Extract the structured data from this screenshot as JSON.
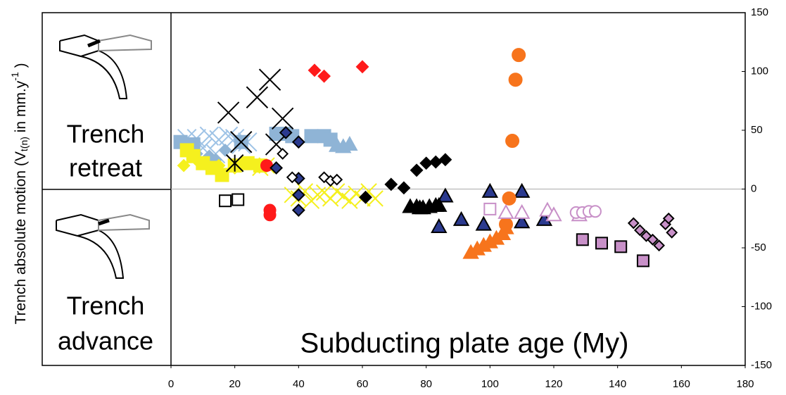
{
  "chart_data": {
    "type": "scatter",
    "ylabel_parts": [
      "Trench absolute motion (V",
      "t(n)",
      " in mm.y",
      "-1",
      " )"
    ],
    "xlabel": "Subducting plate age (My)",
    "panel_top": [
      "Trench",
      "retreat"
    ],
    "panel_bottom": [
      "Trench",
      "advance"
    ],
    "xlim": [
      0,
      180
    ],
    "xticks": [
      0,
      20,
      40,
      60,
      80,
      100,
      120,
      140,
      160,
      180
    ],
    "ylim": [
      -150,
      150
    ],
    "yticks": [
      150,
      100,
      50,
      0,
      -50,
      -100,
      -150
    ],
    "zero_line": true,
    "series": [
      {
        "marker": "cross",
        "size": 13,
        "color": "#9ec3e6",
        "filled": false,
        "edge": "#9ec3e6",
        "x": [
          5,
          8,
          12,
          15,
          18,
          20,
          24,
          10,
          14,
          22
        ],
        "values": [
          43,
          43,
          45,
          42,
          45,
          43,
          40,
          35,
          30,
          38
        ]
      },
      {
        "marker": "square",
        "size": 9,
        "color": "#8fb4d6",
        "filled": true,
        "edge": "#8fb4d6",
        "x": [
          3,
          7,
          22,
          33,
          36,
          38,
          44,
          48,
          50
        ],
        "values": [
          40,
          38,
          40,
          47,
          47,
          45,
          45,
          45,
          42
        ]
      },
      {
        "marker": "triangle",
        "size": 10,
        "color": "#8fb4d6",
        "filled": true,
        "edge": "#8fb4d6",
        "x": [
          52,
          54,
          56
        ],
        "values": [
          37,
          36,
          38
        ]
      },
      {
        "marker": "diamond",
        "size": 8,
        "color": "#8fb4d6",
        "filled": true,
        "edge": "#8fb4d6",
        "x": [
          8,
          12,
          14,
          17
        ],
        "values": [
          30,
          28,
          25,
          33
        ]
      },
      {
        "marker": "square",
        "size": 9,
        "color": "#f5f01e",
        "filled": true,
        "edge": "#f5f01e",
        "x": [
          5,
          7,
          10,
          13,
          16,
          20,
          24,
          28
        ],
        "values": [
          33,
          28,
          22,
          18,
          12,
          20,
          22,
          20
        ]
      },
      {
        "marker": "diamond",
        "size": 8,
        "color": "#f5f01e",
        "filled": true,
        "edge": "#f5f01e",
        "x": [
          4,
          9,
          15,
          20
        ],
        "values": [
          20,
          22,
          20,
          18
        ]
      },
      {
        "marker": "cross",
        "size": 11,
        "color": "#f5f01e",
        "filled": false,
        "edge": "#f5f01e",
        "x": [
          38,
          40,
          42,
          44,
          46,
          48,
          50,
          52,
          54,
          56,
          58,
          60,
          62,
          64,
          30,
          28
        ],
        "values": [
          -5,
          -8,
          -2,
          -10,
          -5,
          -3,
          -8,
          -2,
          -6,
          -10,
          -4,
          -8,
          -2,
          -8,
          20,
          18
        ]
      },
      {
        "marker": "cross",
        "size": 15,
        "color": "#000000",
        "filled": false,
        "edge": "#000000",
        "x": [
          18,
          22,
          27,
          31,
          35,
          33
        ],
        "values": [
          65,
          40,
          78,
          93,
          60,
          38
        ]
      },
      {
        "marker": "asterisk",
        "size": 12,
        "color": "#000000",
        "filled": false,
        "edge": "#000000",
        "x": [
          20
        ],
        "values": [
          22
        ]
      },
      {
        "marker": "diamond",
        "size": 8,
        "color": "#ff1a1a",
        "filled": true,
        "edge": "#ff1a1a",
        "x": [
          45,
          48,
          60
        ],
        "values": [
          101,
          96,
          104
        ]
      },
      {
        "marker": "circle",
        "size": 8,
        "color": "#ff1a1a",
        "filled": true,
        "edge": "#ff1a1a",
        "x": [
          30,
          31,
          31
        ],
        "values": [
          20,
          -18,
          -22
        ]
      },
      {
        "marker": "diamond",
        "size": 8,
        "color": "#000000",
        "filled": true,
        "edge": "#000000",
        "x": [
          69,
          73,
          77,
          80,
          83,
          86,
          61
        ],
        "values": [
          4,
          1,
          16,
          22,
          23,
          25,
          -7
        ]
      },
      {
        "marker": "triangle",
        "size": 10,
        "color": "#2b3a8f",
        "filled": true,
        "edge": "#000000",
        "x": [
          84,
          86,
          91,
          98,
          100,
          110,
          110,
          117
        ],
        "values": [
          -32,
          -6,
          -26,
          -30,
          -2,
          -2,
          -28,
          -26
        ]
      },
      {
        "marker": "diamond",
        "size": 8,
        "color": "#2b3a8f",
        "filled": true,
        "edge": "#000000",
        "x": [
          36,
          40,
          33,
          40,
          40,
          40
        ],
        "values": [
          48,
          40,
          18,
          9,
          -5,
          -18
        ]
      },
      {
        "marker": "triangle",
        "size": 10,
        "color": "#000000",
        "filled": true,
        "edge": "#000000",
        "x": [
          75,
          77,
          78,
          79,
          81,
          83,
          84
        ],
        "values": [
          -15,
          -15,
          -16,
          -16,
          -15,
          -14,
          -14
        ]
      },
      {
        "marker": "circle",
        "size": 9,
        "color": "#f7741c",
        "filled": true,
        "edge": "#f7741c",
        "x": [
          108,
          109,
          107,
          106,
          105
        ],
        "values": [
          93,
          114,
          41,
          -8,
          -30
        ]
      },
      {
        "marker": "triangle",
        "size": 10,
        "color": "#f7741c",
        "filled": true,
        "edge": "#f7741c",
        "x": [
          94,
          96,
          98,
          100,
          102,
          104,
          105
        ],
        "values": [
          -54,
          -51,
          -48,
          -45,
          -42,
          -38,
          -33
        ]
      },
      {
        "marker": "square",
        "size": 8,
        "color": "#000000",
        "filled": false,
        "edge": "#000000",
        "x": [
          17,
          21
        ],
        "values": [
          -10,
          -9
        ]
      },
      {
        "marker": "diamond",
        "size": 7,
        "color": "#000000",
        "filled": false,
        "edge": "#000000",
        "x": [
          35,
          38,
          48,
          50,
          52
        ],
        "values": [
          30,
          10,
          10,
          7,
          8
        ]
      },
      {
        "marker": "square",
        "size": 8,
        "color": "#c890c8",
        "filled": false,
        "edge": "#c890c8",
        "x": [
          100
        ],
        "values": [
          -17
        ]
      },
      {
        "marker": "triangle",
        "size": 10,
        "color": "#c890c8",
        "filled": false,
        "edge": "#c890c8",
        "x": [
          105,
          110,
          118,
          120,
          128
        ],
        "values": [
          -20,
          -20,
          -18,
          -22,
          -22
        ]
      },
      {
        "marker": "circle",
        "size": 8,
        "color": "#c890c8",
        "filled": false,
        "edge": "#c890c8",
        "x": [
          127,
          129,
          131,
          133
        ],
        "values": [
          -20,
          -20,
          -19,
          -19
        ]
      },
      {
        "marker": "square",
        "size": 8,
        "color": "#c890c8",
        "filled": true,
        "edge": "#000000",
        "x": [
          129,
          135,
          141,
          148
        ],
        "values": [
          -43,
          -46,
          -49,
          -61
        ]
      },
      {
        "marker": "diamond",
        "size": 7,
        "color": "#c890c8",
        "filled": true,
        "edge": "#000000",
        "x": [
          145,
          147,
          149,
          151,
          153,
          155,
          156,
          157
        ],
        "values": [
          -29,
          -35,
          -40,
          -43,
          -48,
          -30,
          -25,
          -37
        ]
      }
    ]
  }
}
